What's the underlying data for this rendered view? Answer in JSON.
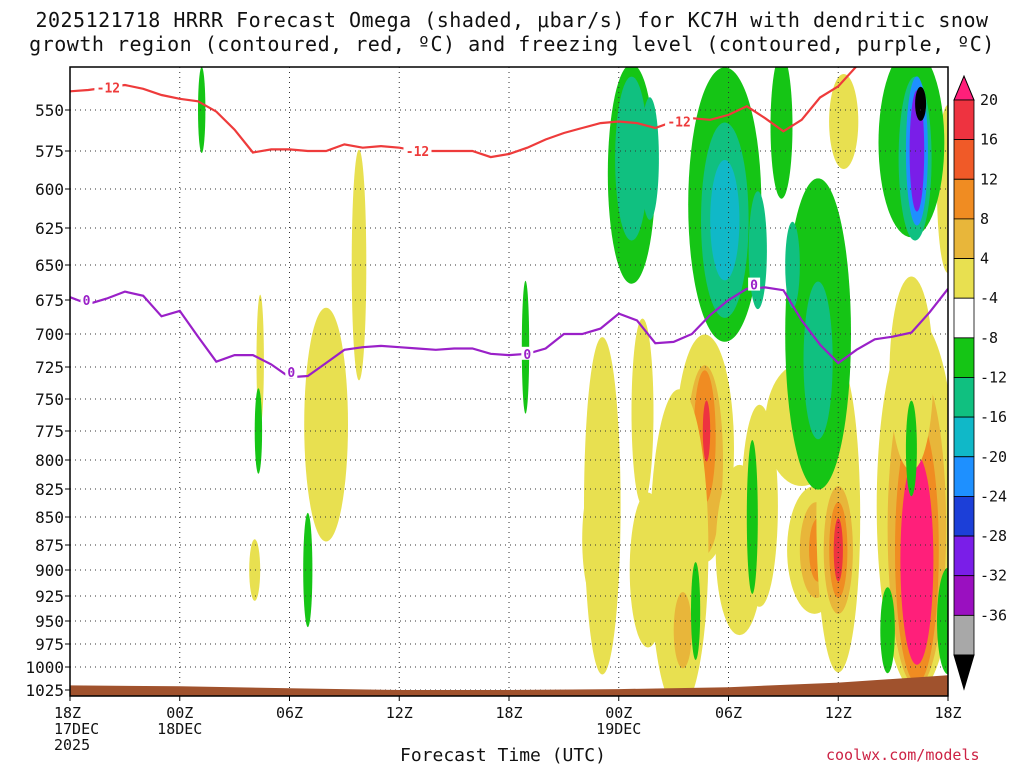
{
  "title_line1": "2025121718 HRRR Forecast Omega (shaded, μbar/s) for KC7H with dendritic snow",
  "title_line2": "growth region (contoured, red, ºC) and freezing level (contoured, purple, ºC)",
  "xlabel": "Forecast Time (UTC)",
  "credit": "coolwx.com/models",
  "chart_data": {
    "type": "heatmap",
    "xlabel": "Forecast Time (UTC)",
    "y_ticks": [
      550,
      575,
      600,
      625,
      650,
      675,
      700,
      725,
      750,
      775,
      800,
      825,
      850,
      875,
      900,
      925,
      950,
      975,
      1000,
      1025
    ],
    "ylim": [
      530,
      1030
    ],
    "x_ticks": [
      {
        "hour": 0,
        "line1": "18Z",
        "line2": "17DEC",
        "line3": "2025"
      },
      {
        "hour": 6,
        "line1": "00Z",
        "line2": "18DEC",
        "line3": ""
      },
      {
        "hour": 12,
        "line1": "06Z",
        "line2": "",
        "line3": ""
      },
      {
        "hour": 18,
        "line1": "12Z",
        "line2": "",
        "line3": ""
      },
      {
        "hour": 24,
        "line1": "18Z",
        "line2": "",
        "line3": ""
      },
      {
        "hour": 30,
        "line1": "00Z",
        "line2": "19DEC",
        "line3": ""
      },
      {
        "hour": 36,
        "line1": "06Z",
        "line2": "",
        "line3": ""
      },
      {
        "hour": 42,
        "line1": "12Z",
        "line2": "",
        "line3": ""
      },
      {
        "hour": 48,
        "line1": "18Z",
        "line2": "",
        "line3": ""
      }
    ],
    "xlim": [
      0,
      48
    ],
    "grid": true,
    "colorbar": {
      "labels": [
        "20",
        "16",
        "12",
        "8",
        "4",
        "-4",
        "-8",
        "-12",
        "-16",
        "-20",
        "-24",
        "-28",
        "-32",
        "-36"
      ],
      "colors": [
        "#ff1f7a",
        "#ee3340",
        "#f05a28",
        "#f08c22",
        "#e8b63a",
        "#e8e050",
        "#ffffff",
        "#15c515",
        "#10c080",
        "#10b8c8",
        "#1e90ff",
        "#1c3fd8",
        "#7a1ee8",
        "#9a10c0",
        "#a8a8a8",
        "#000000"
      ]
    },
    "series": [
      {
        "name": "-12",
        "color": "#ee3b3b",
        "points": [
          [
            0,
            535
          ],
          [
            1,
            534
          ],
          [
            2,
            532
          ],
          [
            3,
            530
          ],
          [
            4,
            533
          ],
          [
            5,
            538
          ],
          [
            6,
            541
          ],
          [
            7,
            543
          ],
          [
            8,
            551
          ],
          [
            9,
            562
          ],
          [
            10,
            576
          ],
          [
            11,
            574
          ],
          [
            12,
            574
          ],
          [
            13,
            575
          ],
          [
            14,
            575
          ],
          [
            15,
            571
          ],
          [
            16,
            573
          ],
          [
            17,
            572
          ],
          [
            18,
            573
          ],
          [
            19,
            575
          ],
          [
            20,
            575
          ],
          [
            21,
            575
          ],
          [
            22,
            575
          ],
          [
            23,
            579
          ],
          [
            24,
            577
          ],
          [
            25,
            573
          ],
          [
            26,
            568
          ],
          [
            27,
            564
          ],
          [
            28,
            561
          ],
          [
            29,
            558
          ],
          [
            30,
            557
          ],
          [
            31,
            558
          ],
          [
            32,
            561
          ],
          [
            33,
            557
          ],
          [
            34,
            555
          ],
          [
            35,
            556
          ],
          [
            36,
            553
          ],
          [
            37,
            547
          ],
          [
            38,
            555
          ],
          [
            39,
            563
          ],
          [
            40,
            556
          ],
          [
            41,
            540
          ],
          [
            42,
            531
          ],
          [
            43,
            515
          ]
        ],
        "labels": [
          {
            "x": 2.1,
            "y": 532
          },
          {
            "x": 19,
            "y": 575
          },
          {
            "x": 33.3,
            "y": 557
          }
        ]
      },
      {
        "name": "0",
        "color": "#9a20c8",
        "points": [
          [
            0,
            673
          ],
          [
            1,
            678
          ],
          [
            2,
            674
          ],
          [
            3,
            669
          ],
          [
            4,
            672
          ],
          [
            5,
            687
          ],
          [
            6,
            683
          ],
          [
            7,
            702
          ],
          [
            8,
            721
          ],
          [
            9,
            716
          ],
          [
            10,
            716
          ],
          [
            11,
            723
          ],
          [
            12,
            733
          ],
          [
            13,
            732
          ],
          [
            14,
            722
          ],
          [
            15,
            712
          ],
          [
            16,
            710
          ],
          [
            17,
            709
          ],
          [
            18,
            710
          ],
          [
            19,
            711
          ],
          [
            20,
            712
          ],
          [
            21,
            711
          ],
          [
            22,
            711
          ],
          [
            23,
            715
          ],
          [
            24,
            716
          ],
          [
            25,
            715
          ],
          [
            26,
            711
          ],
          [
            27,
            700
          ],
          [
            28,
            700
          ],
          [
            29,
            696
          ],
          [
            30,
            685
          ],
          [
            31,
            690
          ],
          [
            32,
            707
          ],
          [
            33,
            706
          ],
          [
            34,
            700
          ],
          [
            35,
            686
          ],
          [
            36,
            675
          ],
          [
            37,
            667
          ],
          [
            38,
            666
          ],
          [
            39,
            668
          ],
          [
            40,
            690
          ],
          [
            41,
            708
          ],
          [
            42,
            722
          ],
          [
            43,
            712
          ],
          [
            44,
            704
          ],
          [
            45,
            702
          ],
          [
            46,
            699
          ],
          [
            47,
            684
          ],
          [
            48,
            667
          ]
        ],
        "labels": [
          {
            "x": 0.9,
            "y": 675
          },
          {
            "x": 12.1,
            "y": 729
          },
          {
            "x": 25,
            "y": 715
          },
          {
            "x": 37.4,
            "y": 664
          }
        ]
      }
    ],
    "surface": {
      "color": "#a0522d"
    }
  }
}
